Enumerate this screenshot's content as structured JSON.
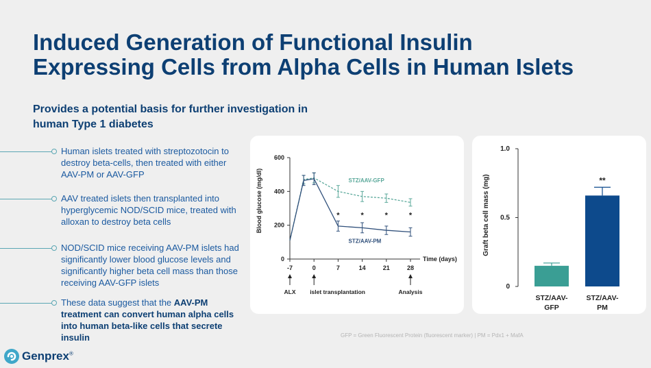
{
  "title": {
    "line1": "Induced Generation of Functional Insulin",
    "line2": "Expressing Cells from Alpha Cells in Human Islets"
  },
  "subtitle": {
    "line1": "Provides a potential basis for further investigation in",
    "line2": "human Type 1 diabetes"
  },
  "bullets": [
    {
      "text": "Human islets treated with streptozotocin to destroy beta-cells, then treated with either AAV-PM or AAV-GFP"
    },
    {
      "text": "AAV treated islets then transplanted into hyperglycemic NOD/SCID mice, treated with alloxan to destroy beta cells"
    },
    {
      "text": "NOD/SCID mice receiving AAV-PM islets had significantly lower blood glucose levels and significantly higher beta cell mass than those receiving AAV-GFP islets"
    },
    {
      "pre": "These data suggest that the ",
      "bold": "AAV-PM treatment can convert human alpha cells into human beta-like cells that secrete insulin"
    }
  ],
  "chart_data": [
    {
      "type": "line",
      "ylabel": "Blood glucose (mg/dl)",
      "xlabel": "Time (days)",
      "ylim": [
        0,
        600
      ],
      "yticks": [
        "0",
        "200",
        "400",
        "600"
      ],
      "xticks": [
        "-7",
        "0",
        "7",
        "14",
        "21",
        "28"
      ],
      "series": [
        {
          "name": "STZ/AAV-GFP",
          "style": "dashed",
          "color": "#5aa89a",
          "x": [
            -7,
            -3,
            0,
            7,
            14,
            21,
            28
          ],
          "y": [
            110,
            470,
            480,
            400,
            370,
            360,
            335
          ],
          "err": [
            0,
            25,
            30,
            35,
            30,
            25,
            22
          ]
        },
        {
          "name": "STZ/AAV-PM",
          "style": "solid",
          "color": "#2f4f7a",
          "x": [
            -7,
            -3,
            0,
            7,
            14,
            21,
            28
          ],
          "y": [
            110,
            465,
            475,
            195,
            185,
            170,
            160
          ],
          "err": [
            0,
            30,
            35,
            30,
            30,
            25,
            25
          ]
        }
      ],
      "significance": [
        {
          "x": 7,
          "label": "*"
        },
        {
          "x": 14,
          "label": "*"
        },
        {
          "x": 21,
          "label": "*"
        },
        {
          "x": 28,
          "label": "*"
        }
      ],
      "annotations": [
        {
          "x": -7,
          "label": "ALX"
        },
        {
          "x": 0,
          "label": "islet transplantation"
        },
        {
          "x": 28,
          "label": "Analysis"
        }
      ]
    },
    {
      "type": "bar",
      "ylabel": "Graft beta cell mass (mg)",
      "ylim": [
        0,
        1.0
      ],
      "yticks": [
        "0",
        "0.5",
        "1.0"
      ],
      "categories": [
        {
          "line1": "STZ/AAV-",
          "line2": "GFP"
        },
        {
          "line1": "STZ/AAV-",
          "line2": "PM"
        }
      ],
      "values": [
        0.15,
        0.66
      ],
      "errors": [
        0.02,
        0.06
      ],
      "colors": [
        "#3a9e94",
        "#0d4a8c"
      ],
      "significance": [
        "",
        "**"
      ]
    }
  ],
  "footnote": "GFP = Green Fluorescent Protein (fluorescent marker) | PM = Pdx1 + MafA",
  "logo": {
    "text": "Genprex",
    "mark": "®"
  }
}
